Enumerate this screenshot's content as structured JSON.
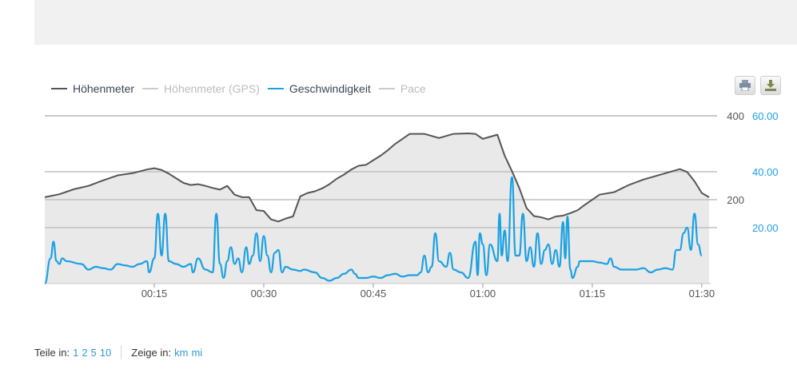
{
  "legend": [
    {
      "label": "Höhenmeter",
      "color": "#555555",
      "active": true
    },
    {
      "label": "Höhenmeter (GPS)",
      "color": "#cccccc",
      "active": false
    },
    {
      "label": "Geschwindigkeit",
      "color": "#1ba1e2",
      "active": true
    },
    {
      "label": "Pace",
      "color": "#cccccc",
      "active": false
    }
  ],
  "toolbar": {
    "print_icon": "print-icon",
    "download_icon": "download-icon"
  },
  "footer": {
    "split_label": "Teile in:",
    "split_options": [
      "1",
      "2",
      "5",
      "10"
    ],
    "unit_label": "Zeige in:",
    "unit_options": [
      "km",
      "mi"
    ]
  },
  "chart_data": {
    "type": "line",
    "x_unit": "minutes",
    "x_ticks": [
      "00:15",
      "00:30",
      "00:45",
      "01:00",
      "01:15",
      "01:30"
    ],
    "x_tick_values": [
      15,
      30,
      45,
      60,
      75,
      90
    ],
    "xlim": [
      0,
      91
    ],
    "y_left": {
      "ticks": [
        "400",
        "200"
      ],
      "tick_values": [
        400,
        200
      ],
      "range": [
        0,
        400
      ],
      "color": "#555555"
    },
    "y_right": {
      "ticks": [
        "60.00",
        "40.00",
        "20.00"
      ],
      "tick_values": [
        60,
        40,
        20
      ],
      "range": [
        0,
        60
      ],
      "color": "#1ba1e2"
    },
    "grid": true,
    "legend_position": "top-left",
    "series": [
      {
        "name": "Höhenmeter",
        "axis": "left",
        "color": "#555555",
        "fill": "#e9e9e9",
        "points": [
          [
            0,
            206
          ],
          [
            2,
            213
          ],
          [
            4,
            225
          ],
          [
            6,
            233
          ],
          [
            8,
            246
          ],
          [
            10,
            258
          ],
          [
            12,
            263
          ],
          [
            14,
            272
          ],
          [
            15,
            275
          ],
          [
            16,
            271
          ],
          [
            17,
            262
          ],
          [
            18,
            251
          ],
          [
            19,
            240
          ],
          [
            20,
            235
          ],
          [
            21,
            237
          ],
          [
            22,
            233
          ],
          [
            23,
            228
          ],
          [
            24,
            224
          ],
          [
            25,
            233
          ],
          [
            26,
            212
          ],
          [
            27,
            206
          ],
          [
            28,
            206
          ],
          [
            29,
            175
          ],
          [
            30,
            173
          ],
          [
            31,
            153
          ],
          [
            32,
            148
          ],
          [
            33,
            155
          ],
          [
            34,
            160
          ],
          [
            35,
            208
          ],
          [
            36,
            216
          ],
          [
            37,
            220
          ],
          [
            38,
            227
          ],
          [
            39,
            237
          ],
          [
            40,
            250
          ],
          [
            41,
            260
          ],
          [
            42,
            272
          ],
          [
            43,
            281
          ],
          [
            44,
            283
          ],
          [
            45,
            294
          ],
          [
            46,
            305
          ],
          [
            47,
            318
          ],
          [
            48,
            333
          ],
          [
            50,
            357
          ],
          [
            52,
            357
          ],
          [
            54,
            347
          ],
          [
            56,
            357
          ],
          [
            58,
            358
          ],
          [
            59,
            357
          ],
          [
            60,
            345
          ],
          [
            61,
            350
          ],
          [
            62,
            355
          ],
          [
            63,
            305
          ],
          [
            64,
            268
          ],
          [
            65,
            228
          ],
          [
            66,
            180
          ],
          [
            67,
            161
          ],
          [
            68,
            158
          ],
          [
            69,
            153
          ],
          [
            70,
            160
          ],
          [
            71,
            162
          ],
          [
            72,
            168
          ],
          [
            73,
            175
          ],
          [
            74,
            188
          ],
          [
            76,
            212
          ],
          [
            78,
            218
          ],
          [
            80,
            235
          ],
          [
            82,
            248
          ],
          [
            84,
            258
          ],
          [
            86,
            268
          ],
          [
            87,
            273
          ],
          [
            88,
            266
          ],
          [
            89,
            244
          ],
          [
            90,
            216
          ],
          [
            91,
            206
          ]
        ]
      },
      {
        "name": "Geschwindigkeit",
        "axis": "right",
        "color": "#1ba1e2",
        "points": [
          [
            0,
            0
          ],
          [
            0.8,
            9
          ],
          [
            1.2,
            15
          ],
          [
            1.6,
            8
          ],
          [
            2,
            7
          ],
          [
            2.4,
            9
          ],
          [
            3,
            8
          ],
          [
            5,
            7
          ],
          [
            6,
            5
          ],
          [
            7,
            6
          ],
          [
            8,
            5.5
          ],
          [
            9,
            5
          ],
          [
            10,
            7
          ],
          [
            11,
            6.5
          ],
          [
            12,
            6
          ],
          [
            13,
            7
          ],
          [
            14,
            8
          ],
          [
            14.3,
            4
          ],
          [
            15,
            9
          ],
          [
            15.5,
            25
          ],
          [
            16,
            10
          ],
          [
            16.5,
            25
          ],
          [
            17,
            8
          ],
          [
            18,
            7
          ],
          [
            19,
            6
          ],
          [
            20,
            7
          ],
          [
            20.3,
            4
          ],
          [
            21,
            9
          ],
          [
            22,
            5
          ],
          [
            23,
            4
          ],
          [
            23.5,
            25
          ],
          [
            24,
            7
          ],
          [
            24.5,
            2
          ],
          [
            25,
            8
          ],
          [
            25.5,
            13
          ],
          [
            26,
            7
          ],
          [
            26.5,
            9
          ],
          [
            27,
            4
          ],
          [
            27.6,
            13
          ],
          [
            28,
            7
          ],
          [
            28.5,
            10
          ],
          [
            29,
            18
          ],
          [
            29.5,
            8
          ],
          [
            30,
            17
          ],
          [
            30.5,
            10
          ],
          [
            31,
            4
          ],
          [
            31.5,
            11
          ],
          [
            32,
            12
          ],
          [
            32.5,
            4
          ],
          [
            33,
            6
          ],
          [
            34,
            5
          ],
          [
            35,
            4.5
          ],
          [
            35.5,
            5
          ],
          [
            37,
            4
          ],
          [
            38,
            2
          ],
          [
            39,
            1
          ],
          [
            40,
            2
          ],
          [
            41,
            3.5
          ],
          [
            42,
            5
          ],
          [
            42.5,
            3.5
          ],
          [
            43,
            2
          ],
          [
            44,
            2
          ],
          [
            45,
            2.5
          ],
          [
            46,
            2
          ],
          [
            47,
            3
          ],
          [
            48,
            3.5
          ],
          [
            49,
            2.5
          ],
          [
            50,
            3
          ],
          [
            51,
            3
          ],
          [
            51.5,
            4
          ],
          [
            52,
            10
          ],
          [
            52.5,
            4
          ],
          [
            53,
            6
          ],
          [
            53.5,
            18
          ],
          [
            54,
            8
          ],
          [
            55,
            6
          ],
          [
            55.5,
            11
          ],
          [
            56,
            5
          ],
          [
            57,
            4
          ],
          [
            58,
            2
          ],
          [
            59,
            15
          ],
          [
            59.3,
            3
          ],
          [
            59.6,
            18
          ],
          [
            60,
            14
          ],
          [
            60.5,
            3
          ],
          [
            61,
            14
          ],
          [
            62,
            8
          ],
          [
            62.3,
            25
          ],
          [
            62.6,
            10
          ],
          [
            63,
            19
          ],
          [
            63.4,
            8
          ],
          [
            64,
            38
          ],
          [
            64.5,
            10
          ],
          [
            65,
            10
          ],
          [
            65.5,
            25
          ],
          [
            66,
            8
          ],
          [
            66.5,
            13
          ],
          [
            67,
            6
          ],
          [
            67.5,
            18
          ],
          [
            68,
            7
          ],
          [
            68.5,
            12
          ],
          [
            69,
            14
          ],
          [
            69.5,
            7
          ],
          [
            70,
            12
          ],
          [
            70.5,
            6
          ],
          [
            71,
            22
          ],
          [
            71.3,
            9
          ],
          [
            71.6,
            24
          ],
          [
            72,
            5
          ],
          [
            72.3,
            2
          ],
          [
            73,
            6
          ],
          [
            73.3,
            8
          ],
          [
            74,
            8
          ],
          [
            75,
            8
          ],
          [
            76,
            7.5
          ],
          [
            77,
            7
          ],
          [
            77.5,
            9
          ],
          [
            78,
            6
          ],
          [
            79,
            5
          ],
          [
            80,
            5
          ],
          [
            81,
            5
          ],
          [
            82,
            5.5
          ],
          [
            83,
            4
          ],
          [
            84,
            5
          ],
          [
            85,
            5.5
          ],
          [
            86,
            5
          ],
          [
            86.5,
            12
          ],
          [
            87,
            12
          ],
          [
            87.5,
            18
          ],
          [
            88,
            20
          ],
          [
            88.5,
            12
          ],
          [
            89,
            25
          ],
          [
            89.5,
            14
          ],
          [
            90,
            10
          ]
        ]
      }
    ]
  }
}
